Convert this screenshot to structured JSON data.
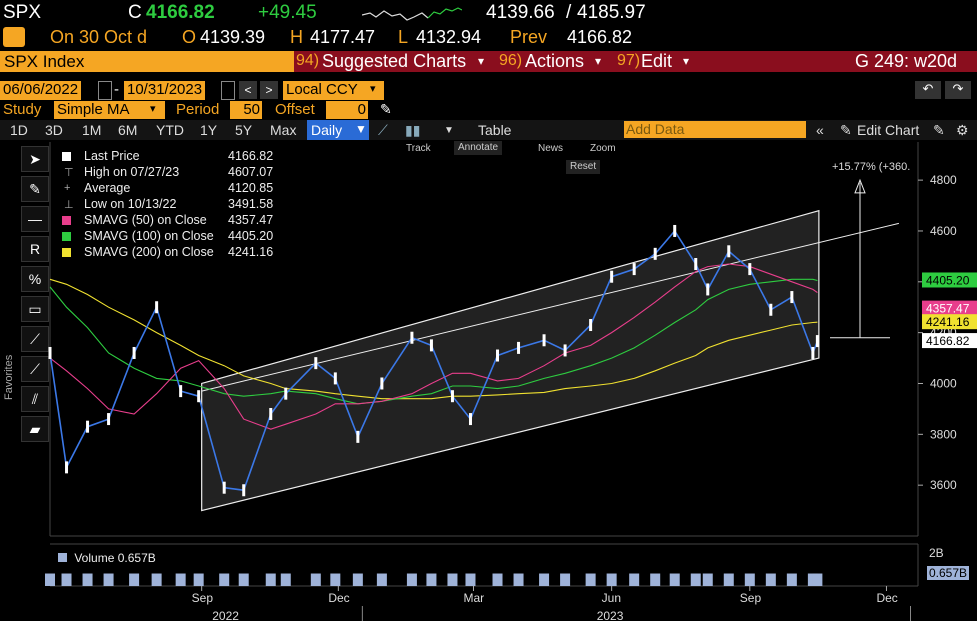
{
  "header": {
    "ticker": "SPX",
    "c_label": "C",
    "last": "4166.82",
    "change": "+49.45",
    "range_low": "4139.66",
    "range_sep": "/",
    "range_high": "4185.97",
    "date_text": "On 30 Oct d",
    "open_label": "O",
    "open": "4139.39",
    "high_label": "H",
    "high": "4177.47",
    "low_label": "L",
    "low": "4132.94",
    "prev_label": "Prev",
    "prev": "4166.82"
  },
  "menubar": {
    "security": "SPX Index",
    "suggested_num": "94)",
    "suggested": "Suggested Charts",
    "actions_num": "96)",
    "actions": "Actions",
    "edit_num": "97)",
    "edit": "Edit",
    "page": "G 249: w20d"
  },
  "controls": {
    "start_date": "06/06/2022",
    "end_date": "10/31/2023",
    "currency": "Local CCY",
    "study_label": "Study",
    "study_value": "Simple MA",
    "period_label": "Period",
    "period_value": "50",
    "offset_label": "Offset",
    "offset_value": "0"
  },
  "ranges": [
    "1D",
    "3D",
    "1M",
    "6M",
    "YTD",
    "1Y",
    "5Y",
    "Max"
  ],
  "frequency": "Daily",
  "table_label": "Table",
  "add_data_placeholder": "Add Data",
  "edit_chart": "Edit Chart",
  "chart_tools": {
    "track": "Track",
    "annotate": "Annotate",
    "news": "News",
    "zoom": "Zoom",
    "reset": "Reset"
  },
  "sidebar_label": "Favorites",
  "legend": {
    "last_price_label": "Last Price",
    "last_price": "4166.82",
    "high_label": "High on 07/27/23",
    "high": "4607.07",
    "average_label": "Average",
    "average": "4120.85",
    "low_label": "Low on 10/13/22",
    "low": "3491.58",
    "sma50_label": "SMAVG (50)  on Close",
    "sma50": "4357.47",
    "sma100_label": "SMAVG (100)  on Close",
    "sma100": "4405.20",
    "sma200_label": "SMAVG (200)  on Close",
    "sma200": "4241.16"
  },
  "annotation": "+15.77% (+360.",
  "volume": {
    "label": "Volume",
    "value": "0.657B",
    "axis_top": "2B",
    "axis_tag": "0.657B"
  },
  "colors": {
    "price": "#3b78e7",
    "sma50": "#e83e8c",
    "sma100": "#2ecc40",
    "sma200": "#f0e130",
    "bloomberg_orange": "#f5a623",
    "menu_red": "#8a0e1e"
  },
  "chart_data": {
    "type": "line",
    "title": "SPX Index",
    "ylim": [
      3400,
      4950
    ],
    "y_ticks": [
      3600,
      3800,
      4000,
      4200,
      4400,
      4600,
      4800
    ],
    "x_ticks": [
      "Sep",
      "Dec",
      "Mar",
      "Jun",
      "Sep",
      "Dec"
    ],
    "x_years": [
      "2022",
      "2023"
    ],
    "x": [
      "2022-06-06",
      "2022-06-17",
      "2022-07-01",
      "2022-07-15",
      "2022-08-01",
      "2022-08-16",
      "2022-09-01",
      "2022-09-13",
      "2022-09-30",
      "2022-10-13",
      "2022-10-31",
      "2022-11-10",
      "2022-11-30",
      "2022-12-13",
      "2022-12-28",
      "2023-01-13",
      "2023-02-02",
      "2023-02-15",
      "2023-03-01",
      "2023-03-13",
      "2023-03-31",
      "2023-04-14",
      "2023-05-01",
      "2023-05-15",
      "2023-06-01",
      "2023-06-15",
      "2023-06-30",
      "2023-07-14",
      "2023-07-27",
      "2023-08-10",
      "2023-08-18",
      "2023-09-01",
      "2023-09-15",
      "2023-09-29",
      "2023-10-13",
      "2023-10-27",
      "2023-10-30"
    ],
    "series": [
      {
        "name": "Last Price",
        "values": [
          4120,
          3670,
          3830,
          3860,
          4120,
          4300,
          3970,
          3950,
          3590,
          3580,
          3880,
          3960,
          4080,
          4020,
          3790,
          4000,
          4180,
          4150,
          3950,
          3860,
          4110,
          4140,
          4170,
          4130,
          4230,
          4420,
          4450,
          4510,
          4600,
          4470,
          4370,
          4520,
          4450,
          4290,
          4340,
          4120,
          4166.82
        ]
      },
      {
        "name": "SMAVG (50)",
        "values": [
          4100,
          4050,
          3980,
          3900,
          3880,
          3960,
          4060,
          4090,
          3980,
          3860,
          3820,
          3840,
          3880,
          3920,
          3920,
          3930,
          3960,
          4000,
          4040,
          4040,
          4010,
          4020,
          4070,
          4120,
          4150,
          4200,
          4260,
          4320,
          4380,
          4440,
          4460,
          4470,
          4460,
          4430,
          4400,
          4370,
          4357.47
        ]
      },
      {
        "name": "SMAVG (100)",
        "values": [
          4380,
          4300,
          4220,
          4120,
          4060,
          4020,
          4010,
          3990,
          3960,
          3950,
          3960,
          3970,
          3960,
          3940,
          3920,
          3930,
          3950,
          3960,
          3990,
          3990,
          3980,
          3990,
          4020,
          4040,
          4070,
          4100,
          4140,
          4190,
          4240,
          4290,
          4330,
          4370,
          4390,
          4400,
          4410,
          4410,
          4405.2
        ]
      },
      {
        "name": "SMAVG (200)",
        "values": [
          4410,
          4390,
          4350,
          4300,
          4250,
          4200,
          4150,
          4110,
          4070,
          4030,
          4000,
          3980,
          3970,
          3960,
          3950,
          3940,
          3940,
          3940,
          3950,
          3950,
          3955,
          3960,
          3965,
          3980,
          3990,
          4000,
          4020,
          4050,
          4080,
          4110,
          4140,
          4170,
          4190,
          4210,
          4230,
          4240,
          4241.16
        ]
      }
    ],
    "channel": {
      "lower": [
        [
          "2022-09-15",
          3500
        ],
        [
          "2023-10-31",
          4100
        ]
      ],
      "upper": [
        [
          "2022-09-15",
          4000
        ],
        [
          "2023-10-31",
          4680
        ]
      ]
    },
    "volume_ylim": [
      0,
      2
    ],
    "volume_units": "B",
    "last_volume": 0.657
  }
}
